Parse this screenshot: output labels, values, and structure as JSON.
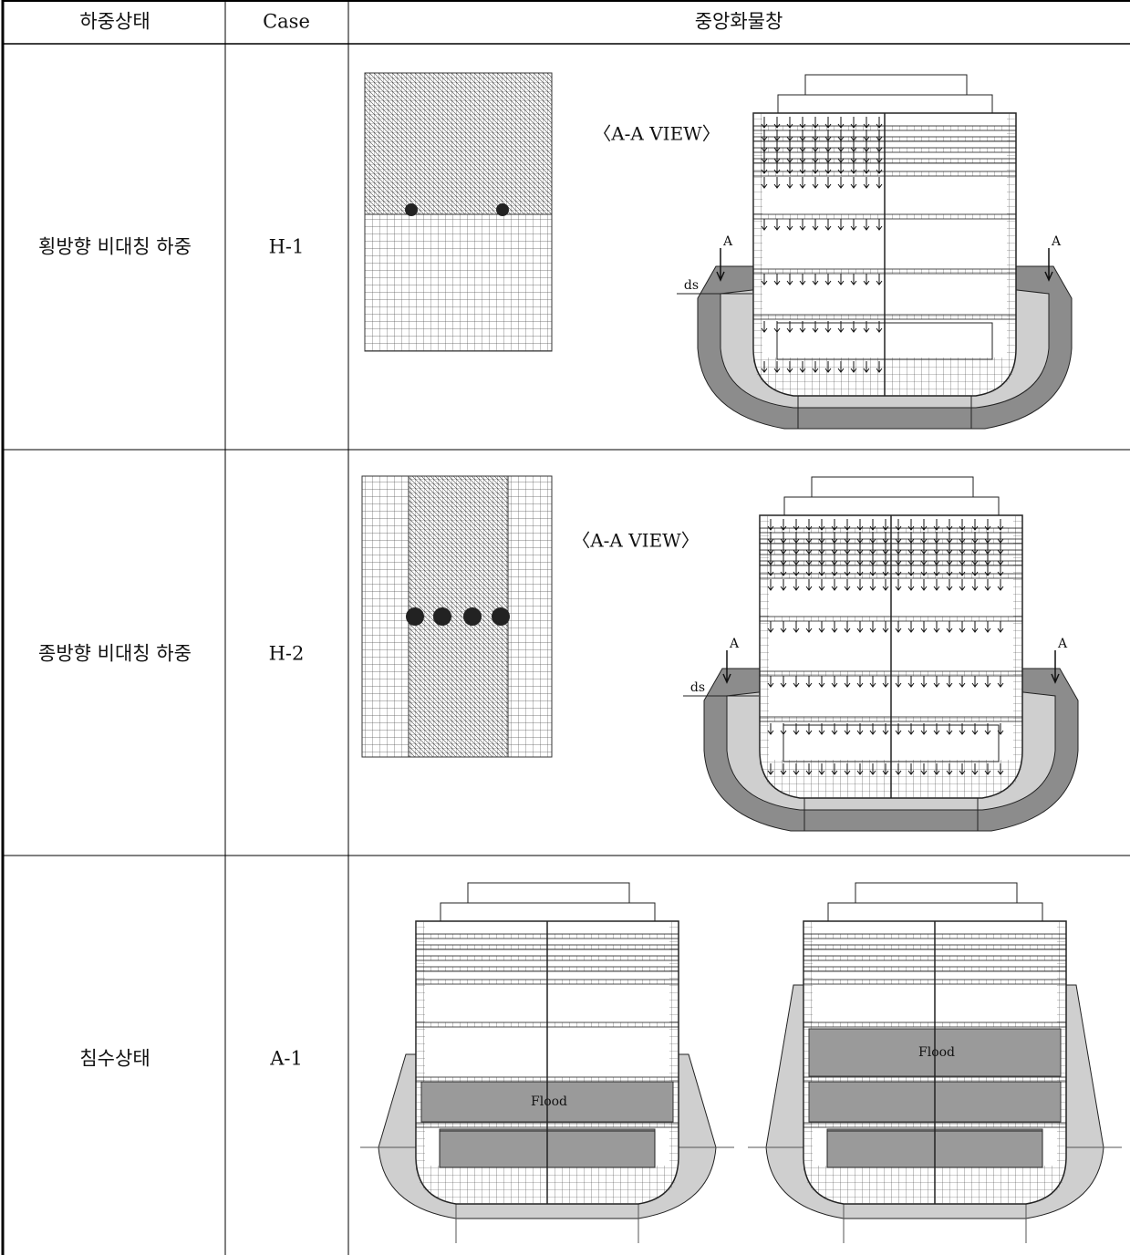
{
  "table": {
    "header": [
      "하중상태",
      "Case",
      "중앙화물창"
    ],
    "rows": [
      [
        "횡방향 비대칭 하중",
        "H-1"
      ],
      [
        "종방향 비대칭 하중",
        "H-2"
      ],
      [
        "침수상태",
        "A-1"
      ]
    ]
  },
  "figures": [
    {
      "view_label": "〈A-A VIEW〉",
      "section_marks": [
        "A",
        "A"
      ],
      "draft_label": "ds"
    },
    {
      "view_label": "〈A-A VIEW〉",
      "section_marks": [
        "A",
        "A"
      ],
      "draft_label": "ds"
    },
    {
      "flood_labels": [
        "Flood",
        "Flood"
      ]
    }
  ]
}
